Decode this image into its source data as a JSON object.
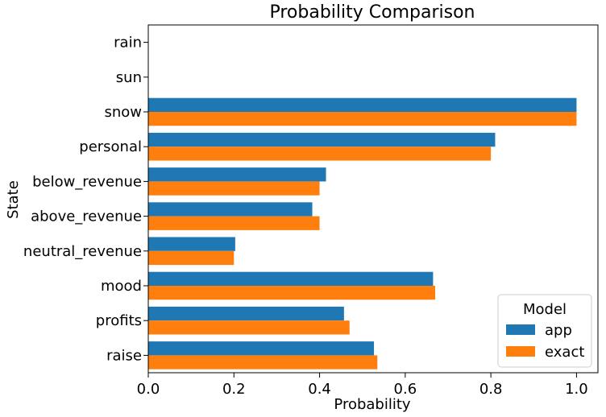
{
  "chart_data": {
    "type": "bar",
    "orientation": "horizontal",
    "title": "Probability Comparison",
    "xlabel": "Probability",
    "ylabel": "State",
    "xlim": [
      0,
      1.05
    ],
    "xticks": [
      "0.0",
      "0.2",
      "0.4",
      "0.6",
      "0.8",
      "1.0"
    ],
    "grid": false,
    "legend_placement": "bottom-right",
    "legend_title": "Model",
    "categories": [
      "rain",
      "sun",
      "snow",
      "personal",
      "below_revenue",
      "above_revenue",
      "neutral_revenue",
      "mood",
      "profits",
      "raise"
    ],
    "series": [
      {
        "name": "app",
        "color": "#1f77b4",
        "values": [
          0,
          0,
          1.0,
          0.81,
          0.415,
          0.383,
          0.203,
          0.665,
          0.457,
          0.527
        ]
      },
      {
        "name": "exact",
        "color": "#ff7f0e",
        "values": [
          0,
          0,
          1.0,
          0.8,
          0.4,
          0.4,
          0.2,
          0.67,
          0.47,
          0.535
        ]
      }
    ]
  }
}
